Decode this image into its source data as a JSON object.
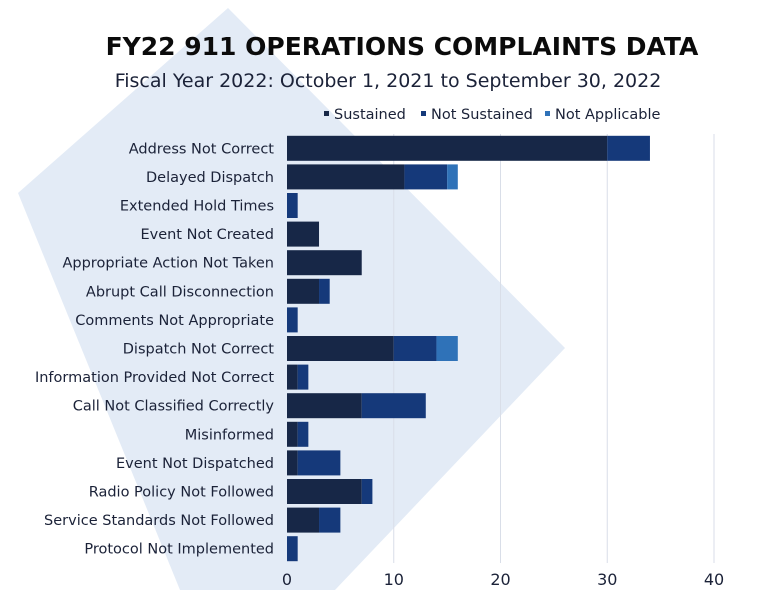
{
  "colors": {
    "sustained": "#172747",
    "not_sustained": "#15397a",
    "not_applicable": "#2f72b8",
    "background_shape": "#e3ebf6",
    "grid": "#d9dee8",
    "text": "#1b2238"
  },
  "chart_data": {
    "type": "bar",
    "orientation": "horizontal",
    "stacked": true,
    "title": "FY22 911 OPERATIONS COMPLAINTS DATA",
    "subtitle": "Fiscal Year 2022: October 1, 2021 to September 30, 2022",
    "categories": [
      "Address Not Correct",
      "Delayed Dispatch",
      "Extended Hold Times",
      "Event Not Created",
      "Appropriate Action Not Taken",
      "Abrupt Call Disconnection",
      "Comments Not Appropriate",
      "Dispatch Not Correct",
      "Information Provided Not Correct",
      "Call Not Classified Correctly",
      "Misinformed",
      "Event Not Dispatched",
      "Radio Policy Not Followed",
      "Service Standards Not Followed",
      "Protocol Not Implemented"
    ],
    "series": [
      {
        "name": "Sustained",
        "values": [
          30,
          11,
          0,
          3,
          7,
          3,
          0,
          10,
          1,
          7,
          1,
          1,
          7,
          3,
          0
        ]
      },
      {
        "name": "Not Sustained",
        "values": [
          4,
          4,
          1,
          0,
          0,
          1,
          1,
          4,
          1,
          6,
          1,
          4,
          1,
          2,
          1
        ]
      },
      {
        "name": "Not Applicable",
        "values": [
          0,
          1,
          0,
          0,
          0,
          0,
          0,
          2,
          0,
          0,
          0,
          0,
          0,
          0,
          0
        ]
      }
    ],
    "xlim": [
      0,
      40
    ],
    "xticks": [
      "0",
      "10",
      "20",
      "30",
      "40"
    ],
    "grid": true,
    "legend_position": "top-right"
  }
}
